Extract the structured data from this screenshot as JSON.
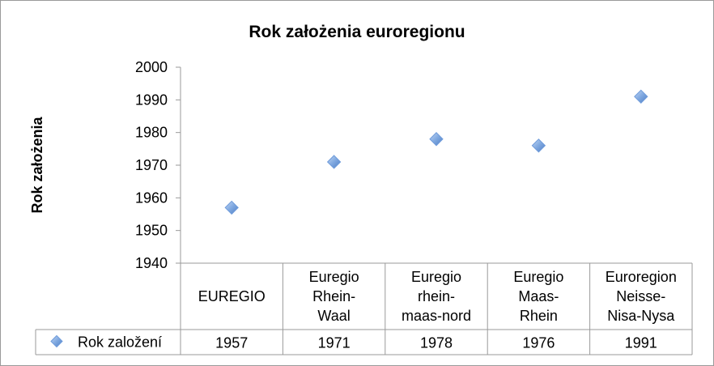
{
  "chart_data": {
    "type": "scatter",
    "title": "Rok założenia euroregionu",
    "xlabel": "",
    "ylabel": "Rok założenia",
    "ylim": [
      1940,
      2000
    ],
    "yticks": [
      "1940",
      "1950",
      "1960",
      "1970",
      "1980",
      "1990",
      "2000"
    ],
    "categories": [
      [
        "EUREGIO"
      ],
      [
        "Euregio",
        "Rhein-",
        "Waal"
      ],
      [
        "Euregio",
        "rhein-",
        "maas-nord"
      ],
      [
        "Euregio",
        "Maas-",
        "Rhein"
      ],
      [
        "Euroregion",
        "Neisse-",
        "Nisa-Nysa"
      ]
    ],
    "series": [
      {
        "name": "Rok založení",
        "values": [
          1957,
          1971,
          1978,
          1976,
          1991
        ],
        "labels": [
          "1957",
          "1971",
          "1978",
          "1976",
          "1991"
        ]
      }
    ],
    "grid": false,
    "legend": "bottom-left data table",
    "marker_color": "#6E9BDB"
  }
}
